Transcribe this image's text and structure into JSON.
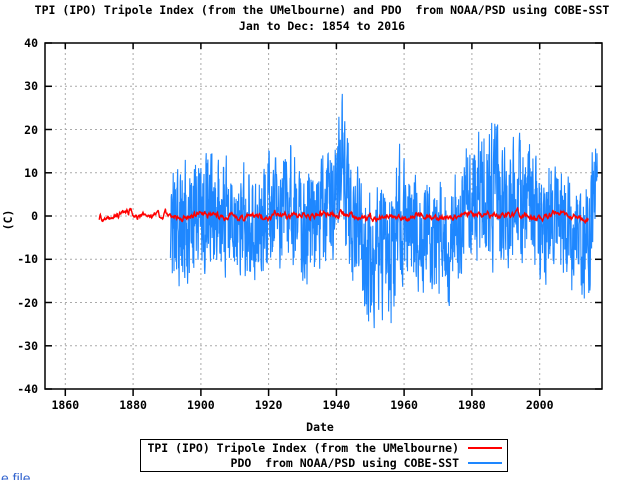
{
  "page": {
    "footer_link_text": "e file"
  },
  "chart_data": {
    "type": "line",
    "title": "TPI (IPO) Tripole Index (from the UMelbourne) and PDO  from NOAA/PSD using COBE-SST",
    "subtitle": "Jan to Dec: 1854 to 2016",
    "xlabel": "Date",
    "ylabel": "(C)",
    "x_axis": {
      "min": 1854,
      "max": 2018.4,
      "ticks": [
        1860,
        1880,
        1900,
        1920,
        1940,
        1960,
        1980,
        2000
      ]
    },
    "y_axis": {
      "min": -40,
      "max": 40,
      "ticks": [
        40,
        30,
        20,
        10,
        0,
        -10,
        -20,
        -30,
        -40
      ]
    },
    "grid": {
      "style": "dashed",
      "color": "#aaaaaa",
      "on": true
    },
    "legend": {
      "position": "bottom-center",
      "border": true
    },
    "series": [
      {
        "name": "TPI (IPO) Tripole Index (from the UMelbourne)",
        "color": "#ff0000",
        "cadence": "monthly",
        "start": 1870,
        "end": 2014.4,
        "observed_range": [
          -3.2,
          2.8
        ],
        "clip": [
          -3.2,
          2.8
        ],
        "anchors_year_mean_amp": [
          [
            1870,
            -0.6,
            1.1
          ],
          [
            1873,
            -0.4,
            1.0
          ],
          [
            1876,
            0.2,
            1.0
          ],
          [
            1878.5,
            1.4,
            1.0
          ],
          [
            1881,
            -0.3,
            1.0
          ],
          [
            1884,
            -0.2,
            1.0
          ],
          [
            1887,
            0.4,
            1.1
          ],
          [
            1890,
            0.3,
            1.0
          ],
          [
            1893,
            -0.4,
            1.0
          ],
          [
            1896,
            -0.2,
            1.0
          ],
          [
            1900,
            0.7,
            1.0
          ],
          [
            1904,
            0.3,
            1.0
          ],
          [
            1908,
            -0.3,
            1.0
          ],
          [
            1912,
            -0.2,
            1.0
          ],
          [
            1916,
            0.2,
            1.0
          ],
          [
            1920,
            0.1,
            1.0
          ],
          [
            1924,
            0.4,
            1.0
          ],
          [
            1928,
            0.0,
            1.0
          ],
          [
            1932,
            0.2,
            1.0
          ],
          [
            1936,
            0.4,
            1.1
          ],
          [
            1940,
            0.5,
            1.1
          ],
          [
            1944,
            0.1,
            1.0
          ],
          [
            1948,
            -0.4,
            1.0
          ],
          [
            1952,
            -0.1,
            1.0
          ],
          [
            1956,
            -0.3,
            1.0
          ],
          [
            1960,
            -0.4,
            1.0
          ],
          [
            1964,
            0.0,
            1.0
          ],
          [
            1968,
            -0.3,
            1.0
          ],
          [
            1972,
            -0.4,
            1.0
          ],
          [
            1976,
            0.1,
            1.0
          ],
          [
            1980,
            0.4,
            1.0
          ],
          [
            1984,
            0.7,
            1.0
          ],
          [
            1988,
            0.2,
            1.0
          ],
          [
            1992,
            0.3,
            1.0
          ],
          [
            1996,
            0.4,
            1.0
          ],
          [
            2000,
            -0.4,
            1.0
          ],
          [
            2004,
            0.3,
            1.0
          ],
          [
            2008,
            0.1,
            1.0
          ],
          [
            2011,
            -0.5,
            1.0
          ],
          [
            2014,
            -0.6,
            1.0
          ]
        ],
        "noise": {
          "seed": 3,
          "rho": 0.78,
          "innov": 0.5,
          "smooth": true
        },
        "stroke_width": 1.4
      },
      {
        "name": "PDO  from NOAA/PSD using COBE-SST",
        "color": "#1e87ff",
        "cadence": "monthly",
        "start": 1891,
        "end": 2017,
        "observed_range": [
          -32.5,
          31.5
        ],
        "clip": [
          -32.5,
          31.6
        ],
        "extremes": {
          "max_year": 1941,
          "max": 31.5,
          "min_year": 1956,
          "min": -32.2
        },
        "anchors_year_mean_amp": [
          [
            1891,
            -1,
            13
          ],
          [
            1894,
            -4,
            14
          ],
          [
            1897,
            1,
            13
          ],
          [
            1901,
            3,
            13
          ],
          [
            1905,
            3,
            14
          ],
          [
            1908,
            -1,
            12
          ],
          [
            1911,
            -2,
            12
          ],
          [
            1914,
            -2,
            13
          ],
          [
            1917,
            -3,
            13
          ],
          [
            1920,
            2,
            12
          ],
          [
            1923,
            1,
            12
          ],
          [
            1926,
            3,
            13
          ],
          [
            1929,
            -1,
            12
          ],
          [
            1932,
            -3,
            13
          ],
          [
            1935,
            0,
            14
          ],
          [
            1938,
            2,
            14
          ],
          [
            1940,
            6,
            15
          ],
          [
            1941.5,
            11,
            17
          ],
          [
            1943,
            4,
            14
          ],
          [
            1946,
            -4,
            13
          ],
          [
            1950,
            -11,
            15
          ],
          [
            1953,
            -7,
            14
          ],
          [
            1956.5,
            -11,
            16
          ],
          [
            1958.5,
            1,
            14
          ],
          [
            1962,
            -5,
            13
          ],
          [
            1966,
            -4,
            12
          ],
          [
            1970,
            -4,
            13
          ],
          [
            1973,
            -6,
            13
          ],
          [
            1976,
            -2,
            12
          ],
          [
            1979,
            3,
            13
          ],
          [
            1983,
            5,
            15
          ],
          [
            1987,
            5,
            15
          ],
          [
            1990,
            0,
            13
          ],
          [
            1993,
            3,
            13
          ],
          [
            1997,
            4,
            14
          ],
          [
            2000,
            -3,
            13
          ],
          [
            2003,
            0,
            12
          ],
          [
            2006,
            -2,
            12
          ],
          [
            2009,
            -4,
            12
          ],
          [
            2012,
            -6,
            13
          ],
          [
            2014,
            -9,
            14
          ],
          [
            2015.5,
            2,
            12
          ],
          [
            2017,
            11,
            9
          ]
        ],
        "noise": {
          "seed": 9,
          "rho": 0.3,
          "innov": 0.95,
          "smooth": false
        },
        "stroke_width": 1.1
      }
    ]
  }
}
